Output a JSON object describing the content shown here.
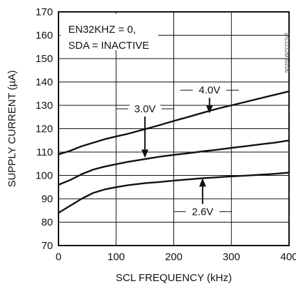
{
  "chart_data": {
    "type": "line",
    "title": "",
    "xlabel": "SCL FREQUENCY (kHz)",
    "ylabel": "SUPPLY CURRENT (µA)",
    "xlim": [
      0,
      400
    ],
    "ylim": [
      70,
      170
    ],
    "x_ticks": [
      0,
      100,
      200,
      300,
      400
    ],
    "y_ticks": [
      70,
      80,
      90,
      100,
      110,
      120,
      130,
      140,
      150,
      160,
      170
    ],
    "grid": true,
    "annotation": [
      "EN32KHZ = 0,",
      "SDA = INACTIVE"
    ],
    "watermark": "DS3232M toc06",
    "series": [
      {
        "name": "4.0V",
        "x": [
          0,
          20,
          40,
          60,
          80,
          100,
          120,
          150,
          175,
          200,
          225,
          250,
          275,
          300,
          325,
          350,
          375,
          400
        ],
        "values": [
          109,
          110.5,
          112.5,
          114,
          115.5,
          116.7,
          117.8,
          119.8,
          121.5,
          123.3,
          125,
          126.8,
          128.5,
          130,
          131.5,
          133,
          134.5,
          136
        ]
      },
      {
        "name": "3.0V",
        "x": [
          0,
          20,
          40,
          60,
          80,
          100,
          120,
          150,
          175,
          200,
          225,
          250,
          275,
          300,
          325,
          350,
          375,
          400
        ],
        "values": [
          96,
          98,
          100.5,
          102.5,
          103.8,
          104.8,
          105.8,
          107,
          108,
          108.8,
          109.5,
          110.3,
          111,
          111.8,
          112.5,
          113.3,
          114,
          115
        ]
      },
      {
        "name": "2.6V",
        "x": [
          0,
          20,
          40,
          60,
          80,
          100,
          120,
          150,
          175,
          200,
          225,
          250,
          275,
          300,
          325,
          350,
          375,
          400
        ],
        "values": [
          84,
          87,
          90,
          92.5,
          94,
          95,
          95.8,
          96.7,
          97.2,
          97.8,
          98.3,
          98.8,
          99.2,
          99.6,
          99.9,
          100.3,
          100.7,
          101.2
        ]
      }
    ],
    "series_labels": [
      {
        "series": "4.0V",
        "text_x": 262,
        "text_y": 136.5,
        "arrow_to_x": 262,
        "arrow_to_y": 126.5
      },
      {
        "series": "3.0V",
        "text_x": 150,
        "text_y": 128.5,
        "arrow_to_x": 150,
        "arrow_to_y": 107.5
      },
      {
        "series": "2.6V",
        "text_x": 250,
        "text_y": 84.5,
        "arrow_to_x": 250,
        "arrow_to_y": 98.8
      }
    ]
  }
}
